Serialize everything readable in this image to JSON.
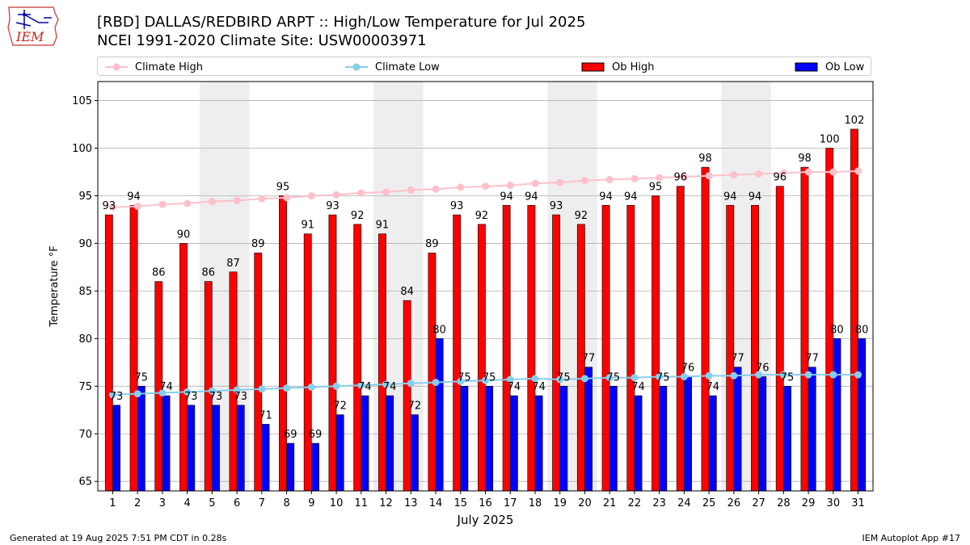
{
  "title_line1": "[RBD] DALLAS/REDBIRD ARPT :: High/Low Temperature for Jul 2025",
  "title_line2": "NCEI 1991-2020 Climate Site: USW00003971",
  "logo_text": "IEM",
  "footer_left": "Generated at 19 Aug 2025 7:51 PM CDT in 0.28s",
  "footer_right": "IEM Autoplot App #17",
  "colors": {
    "ob_high": "#ff0000",
    "ob_low": "#0000ff",
    "climate_high": "#ffc0cb",
    "climate_low": "#87ceeb",
    "weekend_band": "#eeeeee",
    "grid": "#b0b0b0"
  },
  "chart_data": {
    "type": "bar",
    "xlabel": "July 2025",
    "ylabel": "Temperature $^\\circ$F",
    "ylabel_display": "Temperature °F",
    "ylim": [
      64,
      107
    ],
    "yticks": [
      65,
      70,
      75,
      80,
      85,
      90,
      95,
      100,
      105
    ],
    "grid": "horizontal",
    "legend_placement": "top",
    "categories": [
      "1",
      "2",
      "3",
      "4",
      "5",
      "6",
      "7",
      "8",
      "9",
      "10",
      "11",
      "12",
      "13",
      "14",
      "15",
      "16",
      "17",
      "18",
      "19",
      "20",
      "21",
      "22",
      "23",
      "24",
      "25",
      "26",
      "27",
      "28",
      "29",
      "30",
      "31"
    ],
    "shaded_days": [
      5,
      6,
      12,
      13,
      19,
      20,
      26,
      27
    ],
    "series": [
      {
        "name": "Climate High",
        "kind": "line",
        "values": [
          93.8,
          93.9,
          94.1,
          94.2,
          94.4,
          94.5,
          94.7,
          94.8,
          95.0,
          95.1,
          95.3,
          95.4,
          95.6,
          95.7,
          95.9,
          96.0,
          96.1,
          96.3,
          96.4,
          96.6,
          96.7,
          96.8,
          96.9,
          97.0,
          97.1,
          97.2,
          97.3,
          97.4,
          97.5,
          97.5,
          97.6
        ]
      },
      {
        "name": "Climate Low",
        "kind": "line",
        "values": [
          74.1,
          74.2,
          74.3,
          74.4,
          74.5,
          74.6,
          74.7,
          74.8,
          74.9,
          75.0,
          75.1,
          75.2,
          75.3,
          75.4,
          75.5,
          75.6,
          75.7,
          75.8,
          75.7,
          75.8,
          75.9,
          75.9,
          76.0,
          76.0,
          76.1,
          76.1,
          76.2,
          76.2,
          76.2,
          76.2,
          76.2
        ]
      },
      {
        "name": "Ob High",
        "kind": "bar",
        "values": [
          93,
          94,
          86,
          90,
          86,
          87,
          89,
          95,
          91,
          93,
          92,
          91,
          84,
          89,
          93,
          92,
          94,
          94,
          93,
          92,
          94,
          94,
          95,
          96,
          98,
          94,
          94,
          96,
          98,
          100,
          102
        ]
      },
      {
        "name": "Ob Low",
        "kind": "bar",
        "values": [
          73,
          75,
          74,
          73,
          73,
          73,
          71,
          69,
          69,
          72,
          74,
          74,
          72,
          80,
          75,
          75,
          74,
          74,
          75,
          77,
          75,
          74,
          75,
          76,
          74,
          77,
          76,
          75,
          77,
          80,
          80
        ]
      }
    ]
  }
}
